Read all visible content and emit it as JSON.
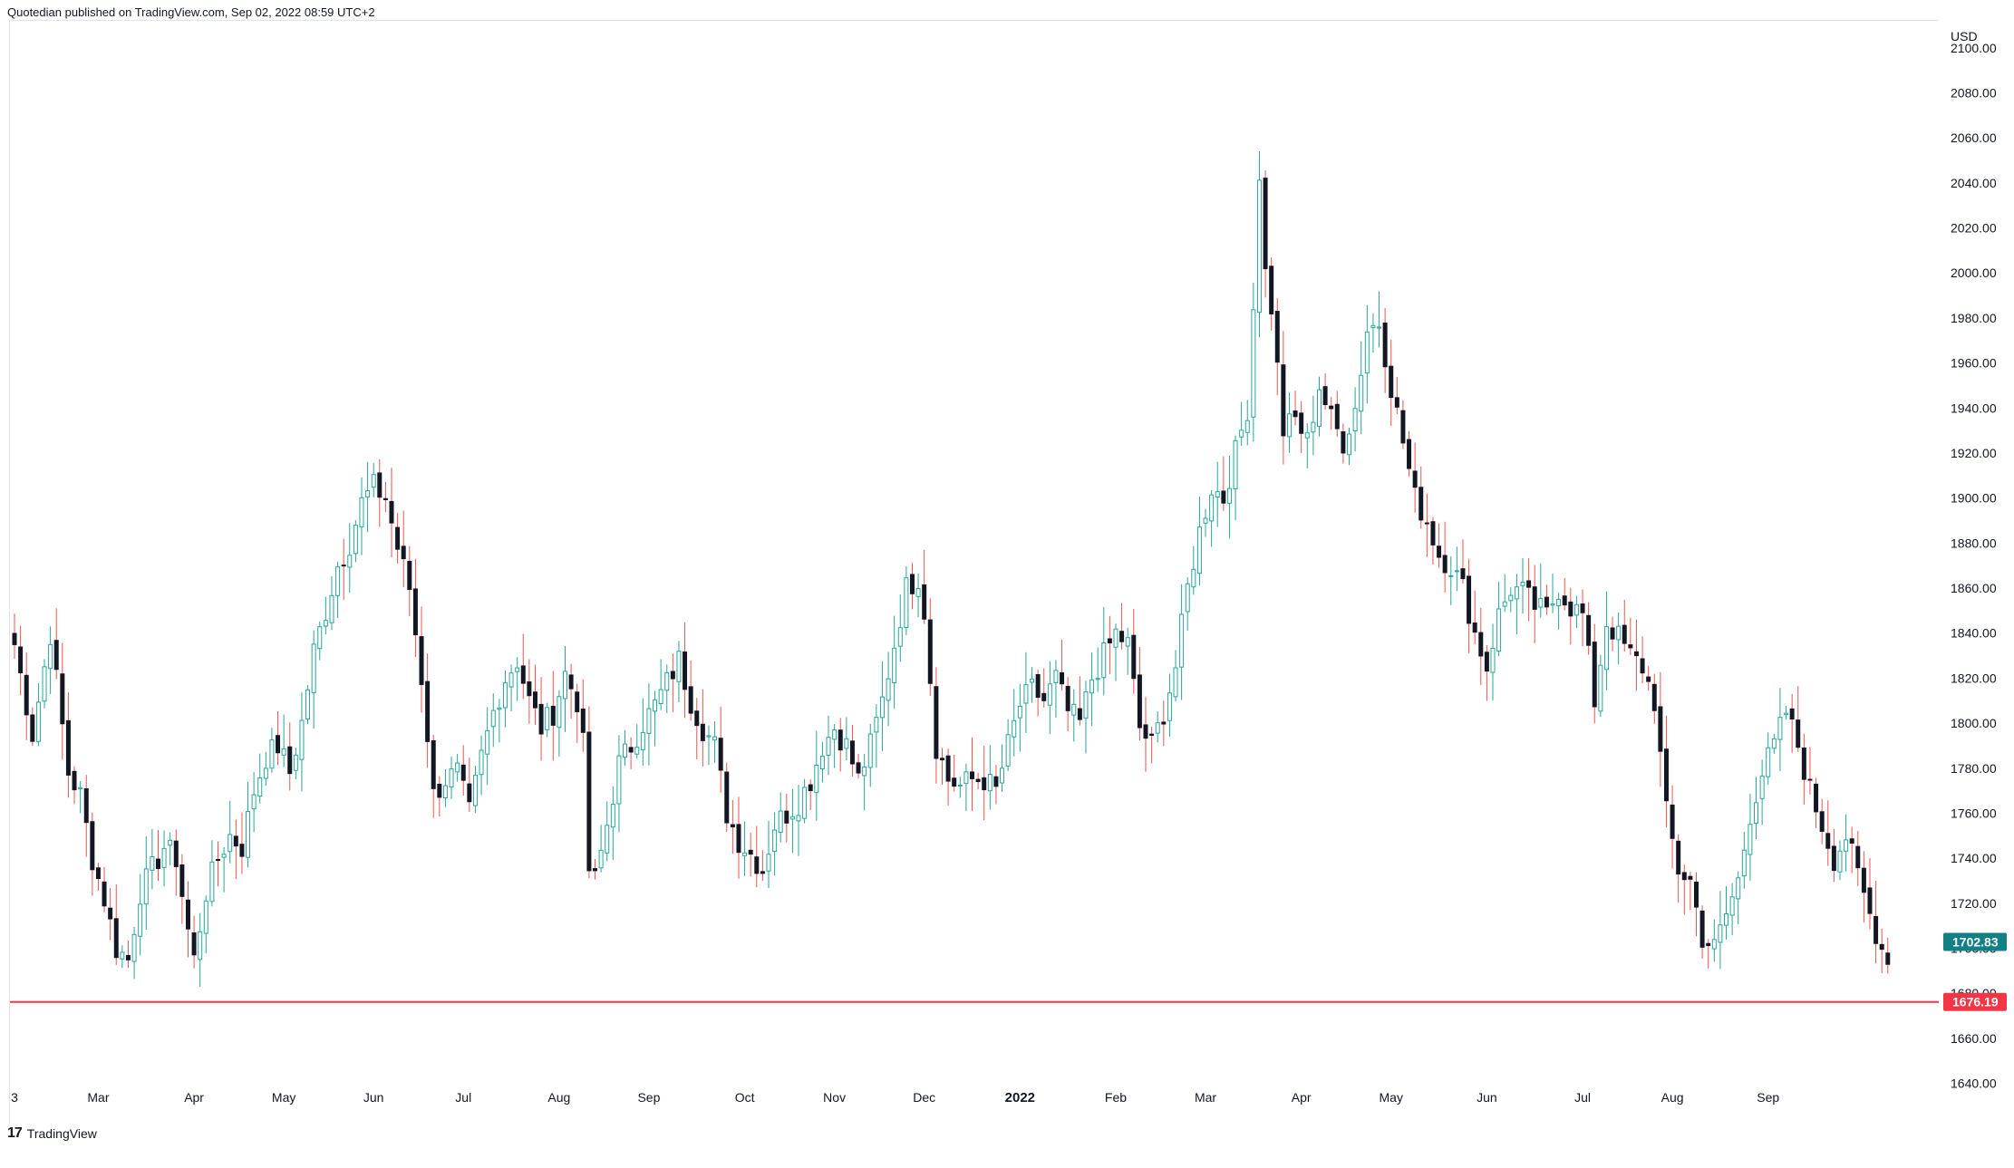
{
  "header": {
    "publisher_text": "Quotedian published on TradingView.com, Sep 02, 2022 08:59 UTC+2"
  },
  "footer": {
    "logo_text": "17",
    "brand_text": "TradingView"
  },
  "colors": {
    "up": "#26a69a",
    "down": "#ef5350",
    "body_dark": "#131722",
    "support_line": "#f23645",
    "last_price_tag": "#138086",
    "support_tag": "#f23645"
  },
  "chart_data": {
    "type": "candlestick",
    "currency_label": "USD",
    "y_ticks": [
      "1640.00",
      "1660.00",
      "1680.00",
      "1700.00",
      "1720.00",
      "1740.00",
      "1760.00",
      "1780.00",
      "1800.00",
      "1820.00",
      "1840.00",
      "1860.00",
      "1880.00",
      "1900.00",
      "1920.00",
      "1940.00",
      "1960.00",
      "1980.00",
      "2000.00",
      "2020.00",
      "2040.00",
      "2060.00",
      "2080.00",
      "2100.00"
    ],
    "ylim": [
      1633,
      2112
    ],
    "x_ticks": [
      {
        "label": "3",
        "bold": false,
        "index": 0
      },
      {
        "label": "Mar",
        "bold": false,
        "index": 14
      },
      {
        "label": "Apr",
        "bold": false,
        "index": 30
      },
      {
        "label": "May",
        "bold": false,
        "index": 45
      },
      {
        "label": "Jun",
        "bold": false,
        "index": 60
      },
      {
        "label": "Jul",
        "bold": false,
        "index": 75
      },
      {
        "label": "Aug",
        "bold": false,
        "index": 91
      },
      {
        "label": "Sep",
        "bold": false,
        "index": 106
      },
      {
        "label": "Oct",
        "bold": false,
        "index": 122
      },
      {
        "label": "Nov",
        "bold": false,
        "index": 137
      },
      {
        "label": "Dec",
        "bold": false,
        "index": 152
      },
      {
        "label": "2022",
        "bold": true,
        "index": 168
      },
      {
        "label": "Feb",
        "bold": false,
        "index": 184
      },
      {
        "label": "Mar",
        "bold": false,
        "index": 199
      },
      {
        "label": "Apr",
        "bold": false,
        "index": 215
      },
      {
        "label": "May",
        "bold": false,
        "index": 230
      },
      {
        "label": "Jun",
        "bold": false,
        "index": 246
      },
      {
        "label": "Jul",
        "bold": false,
        "index": 262
      },
      {
        "label": "Aug",
        "bold": false,
        "index": 277
      },
      {
        "label": "Sep",
        "bold": false,
        "index": 293
      }
    ],
    "last_price": 1702.83,
    "last_price_label": "1702.83",
    "support_level": 1676.19,
    "support_label": "1676.19",
    "anchors": [
      [
        0,
        1835
      ],
      [
        3,
        1795
      ],
      [
        6,
        1840
      ],
      [
        9,
        1778
      ],
      [
        11,
        1768
      ],
      [
        13,
        1740
      ],
      [
        15,
        1722
      ],
      [
        17,
        1700
      ],
      [
        19,
        1695
      ],
      [
        21,
        1725
      ],
      [
        23,
        1735
      ],
      [
        25,
        1745
      ],
      [
        27,
        1740
      ],
      [
        29,
        1708
      ],
      [
        30,
        1695
      ],
      [
        32,
        1725
      ],
      [
        34,
        1740
      ],
      [
        36,
        1750
      ],
      [
        38,
        1745
      ],
      [
        40,
        1770
      ],
      [
        42,
        1785
      ],
      [
        44,
        1790
      ],
      [
        46,
        1778
      ],
      [
        48,
        1800
      ],
      [
        50,
        1832
      ],
      [
        52,
        1850
      ],
      [
        54,
        1870
      ],
      [
        56,
        1880
      ],
      [
        58,
        1898
      ],
      [
        60,
        1905
      ],
      [
        62,
        1900
      ],
      [
        64,
        1878
      ],
      [
        66,
        1860
      ],
      [
        68,
        1820
      ],
      [
        69,
        1795
      ],
      [
        70,
        1768
      ],
      [
        72,
        1775
      ],
      [
        74,
        1778
      ],
      [
        76,
        1760
      ],
      [
        78,
        1785
      ],
      [
        80,
        1805
      ],
      [
        82,
        1820
      ],
      [
        84,
        1828
      ],
      [
        86,
        1810
      ],
      [
        88,
        1798
      ],
      [
        90,
        1805
      ],
      [
        92,
        1822
      ],
      [
        94,
        1810
      ],
      [
        95,
        1790
      ],
      [
        96,
        1735
      ],
      [
        97,
        1730
      ],
      [
        99,
        1755
      ],
      [
        101,
        1782
      ],
      [
        103,
        1790
      ],
      [
        105,
        1800
      ],
      [
        107,
        1808
      ],
      [
        109,
        1818
      ],
      [
        111,
        1828
      ],
      [
        113,
        1810
      ],
      [
        115,
        1798
      ],
      [
        117,
        1790
      ],
      [
        119,
        1760
      ],
      [
        121,
        1748
      ],
      [
        123,
        1742
      ],
      [
        125,
        1735
      ],
      [
        127,
        1755
      ],
      [
        129,
        1760
      ],
      [
        131,
        1765
      ],
      [
        133,
        1775
      ],
      [
        135,
        1790
      ],
      [
        137,
        1798
      ],
      [
        139,
        1790
      ],
      [
        141,
        1775
      ],
      [
        143,
        1790
      ],
      [
        145,
        1810
      ],
      [
        147,
        1835
      ],
      [
        149,
        1860
      ],
      [
        151,
        1865
      ],
      [
        152,
        1850
      ],
      [
        154,
        1790
      ],
      [
        156,
        1775
      ],
      [
        158,
        1772
      ],
      [
        160,
        1775
      ],
      [
        162,
        1775
      ],
      [
        164,
        1770
      ],
      [
        166,
        1790
      ],
      [
        168,
        1808
      ],
      [
        170,
        1815
      ],
      [
        172,
        1810
      ],
      [
        174,
        1820
      ],
      [
        176,
        1805
      ],
      [
        178,
        1800
      ],
      [
        180,
        1820
      ],
      [
        182,
        1830
      ],
      [
        184,
        1840
      ],
      [
        186,
        1835
      ],
      [
        188,
        1798
      ],
      [
        190,
        1790
      ],
      [
        192,
        1805
      ],
      [
        194,
        1825
      ],
      [
        196,
        1860
      ],
      [
        198,
        1885
      ],
      [
        200,
        1905
      ],
      [
        202,
        1900
      ],
      [
        204,
        1920
      ],
      [
        206,
        1940
      ],
      [
        207,
        1985
      ],
      [
        208,
        2045
      ],
      [
        209,
        2000
      ],
      [
        210,
        1985
      ],
      [
        212,
        1930
      ],
      [
        214,
        1935
      ],
      [
        216,
        1925
      ],
      [
        218,
        1950
      ],
      [
        220,
        1935
      ],
      [
        222,
        1925
      ],
      [
        224,
        1940
      ],
      [
        226,
        1975
      ],
      [
        228,
        1978
      ],
      [
        230,
        1950
      ],
      [
        232,
        1925
      ],
      [
        234,
        1900
      ],
      [
        236,
        1890
      ],
      [
        238,
        1875
      ],
      [
        240,
        1870
      ],
      [
        242,
        1860
      ],
      [
        244,
        1840
      ],
      [
        246,
        1825
      ],
      [
        248,
        1848
      ],
      [
        250,
        1860
      ],
      [
        252,
        1858
      ],
      [
        254,
        1852
      ],
      [
        256,
        1848
      ],
      [
        258,
        1860
      ],
      [
        260,
        1852
      ],
      [
        262,
        1848
      ],
      [
        264,
        1810
      ],
      [
        266,
        1845
      ],
      [
        268,
        1838
      ],
      [
        270,
        1830
      ],
      [
        272,
        1825
      ],
      [
        274,
        1810
      ],
      [
        276,
        1760
      ],
      [
        278,
        1735
      ],
      [
        280,
        1730
      ],
      [
        282,
        1705
      ],
      [
        284,
        1700
      ],
      [
        286,
        1715
      ],
      [
        288,
        1730
      ],
      [
        290,
        1760
      ],
      [
        292,
        1778
      ],
      [
        294,
        1790
      ],
      [
        296,
        1805
      ],
      [
        298,
        1790
      ],
      [
        300,
        1770
      ],
      [
        302,
        1755
      ],
      [
        304,
        1740
      ],
      [
        306,
        1750
      ],
      [
        308,
        1732
      ],
      [
        310,
        1715
      ],
      [
        312,
        1700
      ],
      [
        313,
        1697
      ]
    ]
  }
}
